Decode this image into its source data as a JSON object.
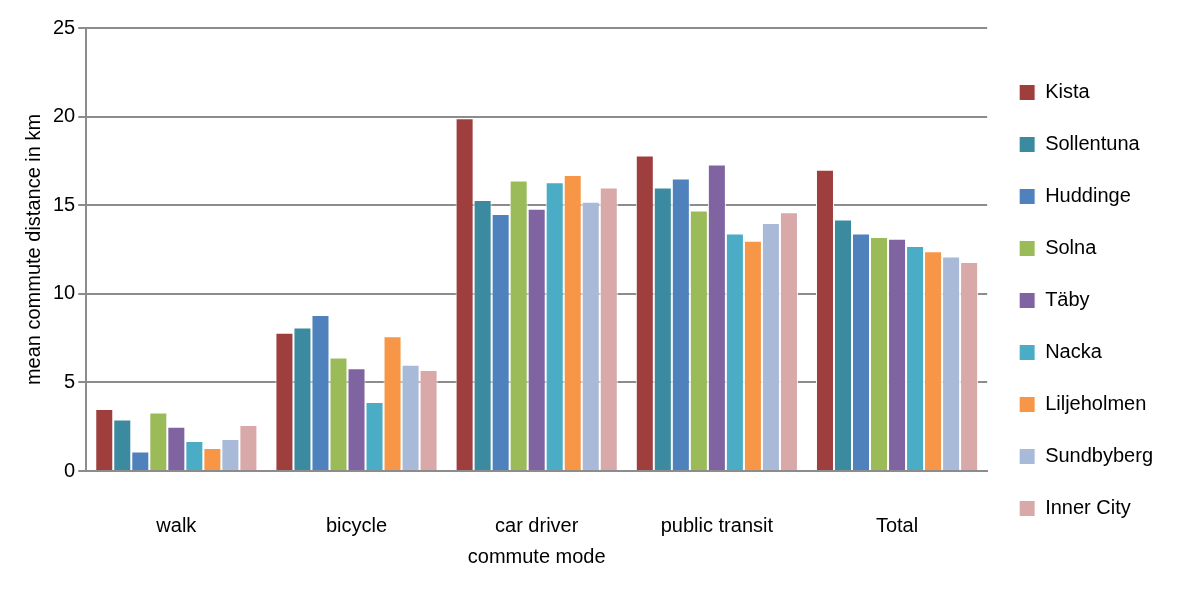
{
  "chart_data": {
    "type": "bar",
    "xlabel": "commute mode",
    "ylabel": "mean commute distance in km",
    "categories": [
      "walk",
      "bicycle",
      "car driver",
      "public transit",
      "Total"
    ],
    "series": [
      {
        "name": "Kista",
        "color": "#9e3f3e",
        "values": [
          3.5,
          7.8,
          19.9,
          17.8,
          17.0
        ]
      },
      {
        "name": "Sollentuna",
        "color": "#3b8aa0",
        "values": [
          2.9,
          8.1,
          15.3,
          16.0,
          14.2
        ]
      },
      {
        "name": "Huddinge",
        "color": "#4f81bd",
        "values": [
          1.1,
          8.8,
          14.5,
          16.5,
          13.4
        ]
      },
      {
        "name": "Solna",
        "color": "#9bbb59",
        "values": [
          3.3,
          6.4,
          16.4,
          14.7,
          13.2
        ]
      },
      {
        "name": "Täby",
        "color": "#8064a2",
        "values": [
          2.5,
          5.8,
          14.8,
          17.3,
          13.1
        ]
      },
      {
        "name": "Nacka",
        "color": "#4bacc6",
        "values": [
          1.7,
          3.9,
          16.3,
          13.4,
          12.7
        ]
      },
      {
        "name": "Liljeholmen",
        "color": "#f79646",
        "values": [
          1.3,
          7.6,
          16.7,
          13.0,
          12.4
        ]
      },
      {
        "name": "Sundbyberg",
        "color": "#a9b9d8",
        "values": [
          1.8,
          6.0,
          15.2,
          14.0,
          12.1
        ]
      },
      {
        "name": "Inner City",
        "color": "#d9a8a8",
        "values": [
          2.6,
          5.7,
          16.0,
          14.6,
          11.8
        ]
      }
    ],
    "ylim": [
      0,
      25
    ],
    "yticks": [
      0,
      5,
      10,
      15,
      20,
      25
    ],
    "grid": "y",
    "legend": "right"
  }
}
